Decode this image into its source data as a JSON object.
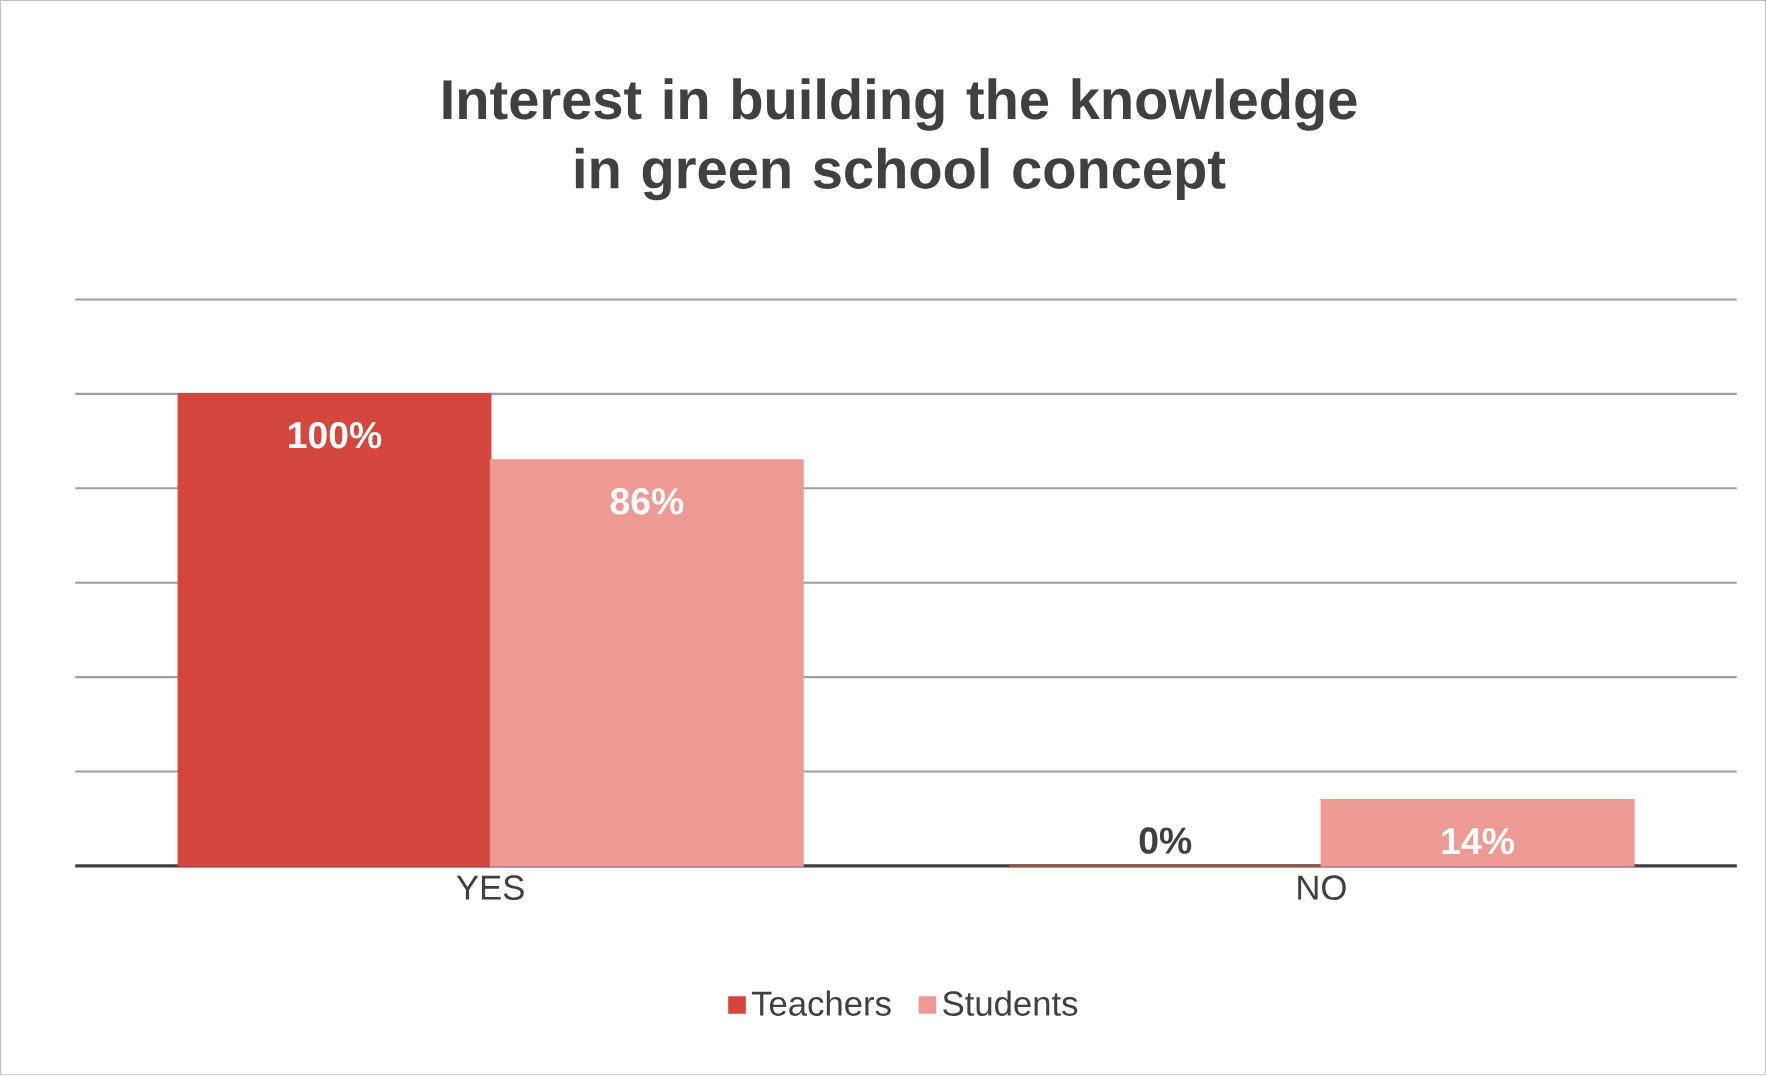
{
  "chart_data": {
    "type": "bar",
    "title": "Interest in building the knowledge in green school concept",
    "categories": [
      "YES",
      "NO"
    ],
    "series": [
      {
        "name": "Teachers",
        "color": "#d4473f",
        "values": [
          100,
          0
        ],
        "value_labels": [
          "100%",
          "0%"
        ]
      },
      {
        "name": "Students",
        "color": "#ee9a94",
        "values": [
          86,
          14
        ],
        "value_labels": [
          "86%",
          "14%"
        ]
      }
    ],
    "tick_labels": "x",
    "grid": "y",
    "legend": "bottom"
  }
}
